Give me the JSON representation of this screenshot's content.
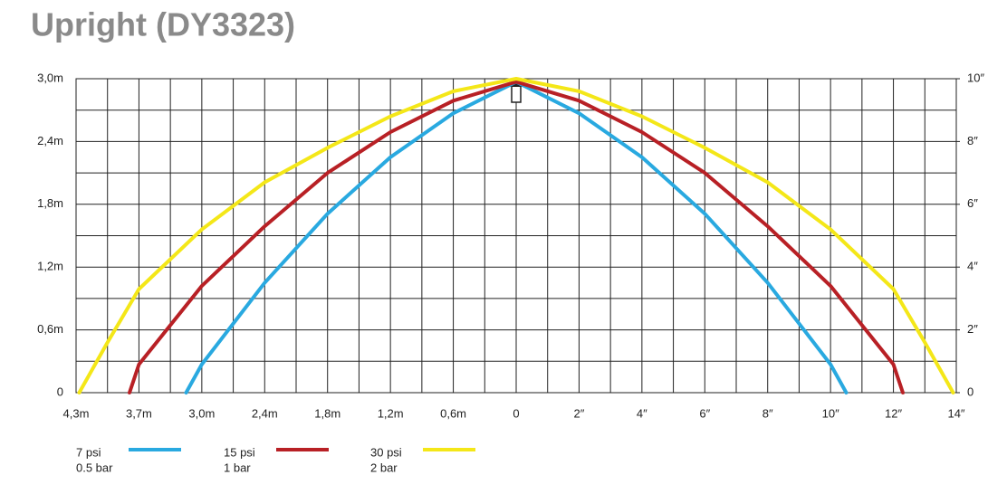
{
  "chart_data": {
    "type": "line",
    "title": "Upright (DY3323)",
    "xlim": [
      -14,
      14
    ],
    "xticks": [
      {
        "value": -14,
        "label": "4,3m"
      },
      {
        "value": -12,
        "label": "3,7m"
      },
      {
        "value": -10,
        "label": "3,0m"
      },
      {
        "value": -8,
        "label": "2,4m"
      },
      {
        "value": -6,
        "label": "1,8m"
      },
      {
        "value": -4,
        "label": "1,2m"
      },
      {
        "value": -2,
        "label": "0,6m"
      },
      0,
      {
        "value": 2,
        "label": "2″"
      },
      {
        "value": 4,
        "label": "4″"
      },
      {
        "value": 6,
        "label": "6″"
      },
      {
        "value": 8,
        "label": "8″"
      },
      {
        "value": 10,
        "label": "10″"
      },
      {
        "value": 12,
        "label": "12″"
      },
      {
        "value": 14,
        "label": "14″"
      }
    ],
    "ylim": [
      0,
      3.0
    ],
    "yticks": [
      0,
      {
        "value": 0.6,
        "label": "0,6m"
      },
      {
        "value": 1.2,
        "label": "1,2m"
      },
      {
        "value": 1.8,
        "label": "1,8m"
      },
      {
        "value": 2.4,
        "label": "2,4m"
      },
      {
        "value": 3.0,
        "label": "3,0m"
      }
    ],
    "y2lim": [
      0,
      10
    ],
    "y2ticks": [
      0,
      {
        "value": 2,
        "label": "2″"
      },
      {
        "value": 4,
        "label": "4″"
      },
      {
        "value": 6,
        "label": "6″"
      },
      {
        "value": 8,
        "label": "8″"
      },
      {
        "value": 10,
        "label": "10″"
      }
    ],
    "grid": true,
    "series": [
      {
        "name": "7 psi",
        "subname": "0.5 bar",
        "color": "#29a9e0",
        "axis": "y2",
        "x": [
          -10.5,
          -10,
          -8,
          -6,
          -4,
          -2,
          0,
          2,
          4,
          6,
          8,
          10,
          10.5
        ],
        "values": [
          0,
          0.9,
          3.5,
          5.7,
          7.5,
          8.9,
          9.9,
          8.9,
          7.5,
          5.7,
          3.5,
          0.9,
          0
        ]
      },
      {
        "name": "15 psi",
        "subname": "1 bar",
        "color": "#b82025",
        "axis": "y2",
        "x": [
          -12.3,
          -12,
          -10,
          -8,
          -6,
          -4,
          -2,
          0,
          2,
          4,
          6,
          8,
          10,
          12,
          12.3
        ],
        "values": [
          0,
          0.9,
          3.4,
          5.3,
          7.0,
          8.3,
          9.3,
          9.9,
          9.3,
          8.3,
          7.0,
          5.3,
          3.4,
          0.9,
          0
        ]
      },
      {
        "name": "30 psi",
        "subname": "2 bar",
        "color": "#f4e718",
        "axis": "y2",
        "x": [
          -13.9,
          -13,
          -12,
          -10,
          -8,
          -6,
          -4,
          -2,
          0,
          2,
          4,
          6,
          8,
          10,
          12,
          13,
          13.9
        ],
        "values": [
          0,
          1.6,
          3.3,
          5.2,
          6.7,
          7.8,
          8.8,
          9.6,
          10.0,
          9.6,
          8.8,
          7.8,
          6.7,
          5.2,
          3.3,
          1.6,
          0
        ]
      }
    ]
  }
}
